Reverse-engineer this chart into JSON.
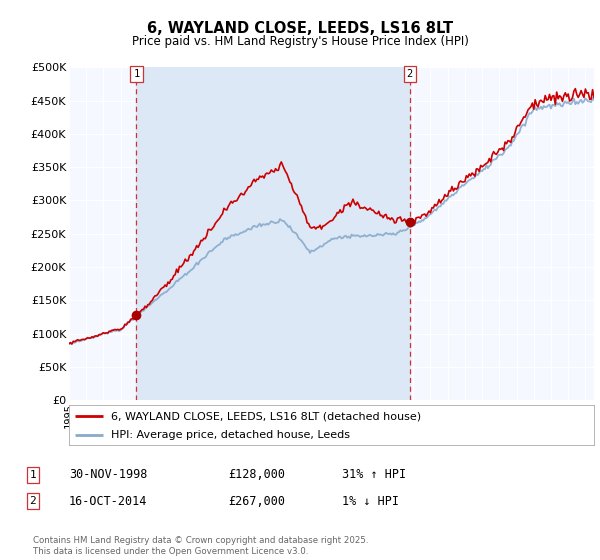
{
  "title": "6, WAYLAND CLOSE, LEEDS, LS16 8LT",
  "subtitle": "Price paid vs. HM Land Registry's House Price Index (HPI)",
  "xlim_start": 1995.0,
  "xlim_end": 2025.5,
  "ylim": [
    0,
    500000
  ],
  "yticks": [
    0,
    50000,
    100000,
    150000,
    200000,
    250000,
    300000,
    350000,
    400000,
    450000,
    500000
  ],
  "ytick_labels": [
    "£0",
    "£50K",
    "£100K",
    "£150K",
    "£200K",
    "£250K",
    "£300K",
    "£350K",
    "£400K",
    "£450K",
    "£500K"
  ],
  "red_line_color": "#cc0000",
  "blue_line_color": "#88aacc",
  "shade_color": "#dce8f5",
  "marker_color": "#aa0000",
  "vline_color": "#cc3333",
  "sale1_x": 1998.92,
  "sale1_y": 128000,
  "sale1_label": "1",
  "sale1_date": "30-NOV-1998",
  "sale1_price": "£128,000",
  "sale1_hpi": "31% ↑ HPI",
  "sale2_x": 2014.79,
  "sale2_y": 267000,
  "sale2_label": "2",
  "sale2_date": "16-OCT-2014",
  "sale2_price": "£267,000",
  "sale2_hpi": "1% ↓ HPI",
  "legend_line1": "6, WAYLAND CLOSE, LEEDS, LS16 8LT (detached house)",
  "legend_line2": "HPI: Average price, detached house, Leeds",
  "footnote": "Contains HM Land Registry data © Crown copyright and database right 2025.\nThis data is licensed under the Open Government Licence v3.0.",
  "bg_color": "#ffffff",
  "plot_bg_color": "#f5f8ff",
  "grid_color": "#ffffff"
}
